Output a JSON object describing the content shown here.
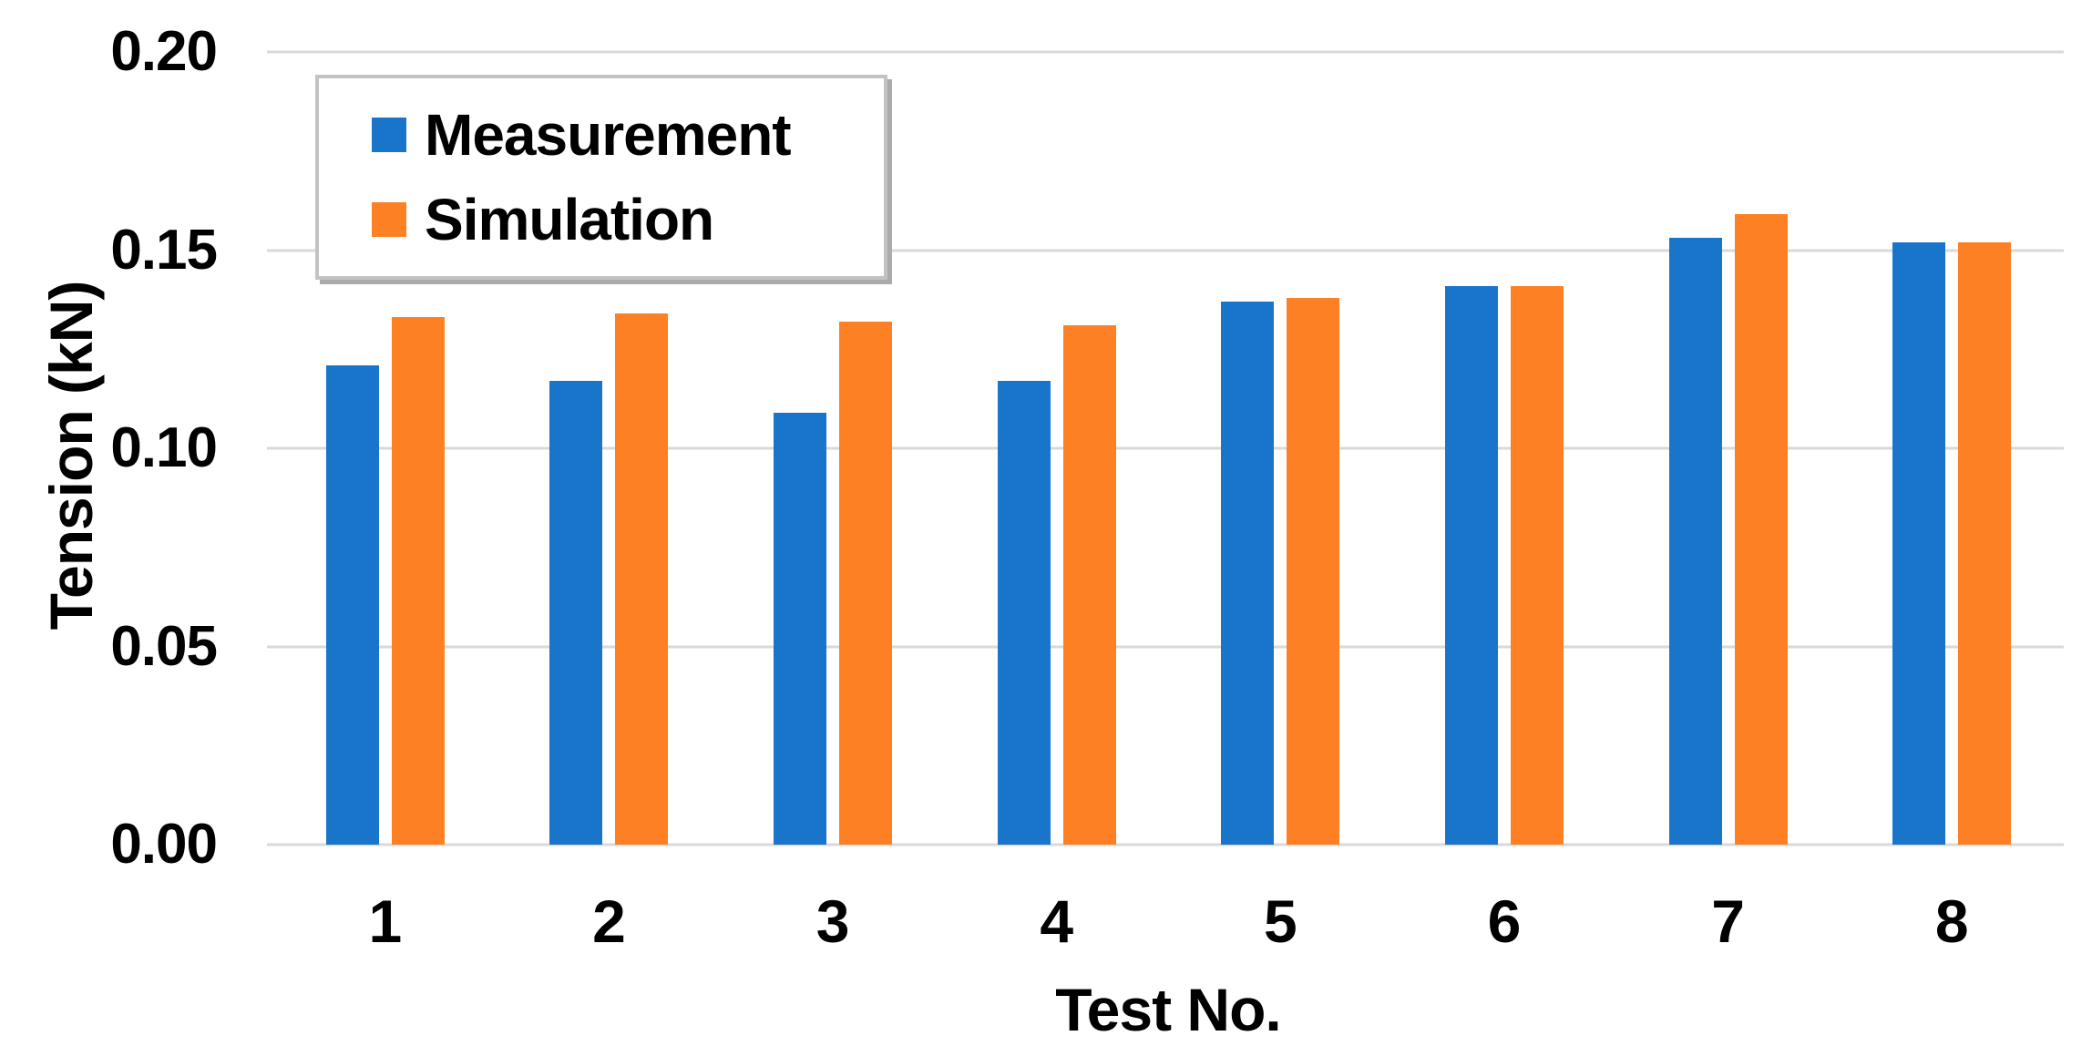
{
  "chart_data": {
    "type": "bar",
    "title": "",
    "categories": [
      "1",
      "2",
      "3",
      "4",
      "5",
      "6",
      "7",
      "8"
    ],
    "series": [
      {
        "name": "Measurement",
        "color": "#1875CA",
        "values": [
          0.121,
          0.117,
          0.109,
          0.117,
          0.137,
          0.141,
          0.153,
          0.152
        ]
      },
      {
        "name": "Simulation",
        "color": "#FD8024",
        "values": [
          0.133,
          0.134,
          0.132,
          0.131,
          0.138,
          0.141,
          0.159,
          0.152
        ]
      }
    ],
    "xlabel": "Test No.",
    "ylabel": "Tension (kN)",
    "ylim": [
      0.0,
      0.2
    ],
    "yticks": [
      0.2,
      0.15,
      0.1,
      0.05,
      0.0
    ],
    "ytick_labels": [
      "0.20",
      "0.15",
      "0.10",
      "0.05",
      "0.00"
    ],
    "grid": "horizontal-only",
    "legend_position": "top-left-inside"
  },
  "style_colors": {
    "gridline": "#D9D9D9",
    "legend_border": "#C3C3C3",
    "legend_shadow": "#ABABAB",
    "text": "#000000",
    "background": "#FFFFFF"
  }
}
